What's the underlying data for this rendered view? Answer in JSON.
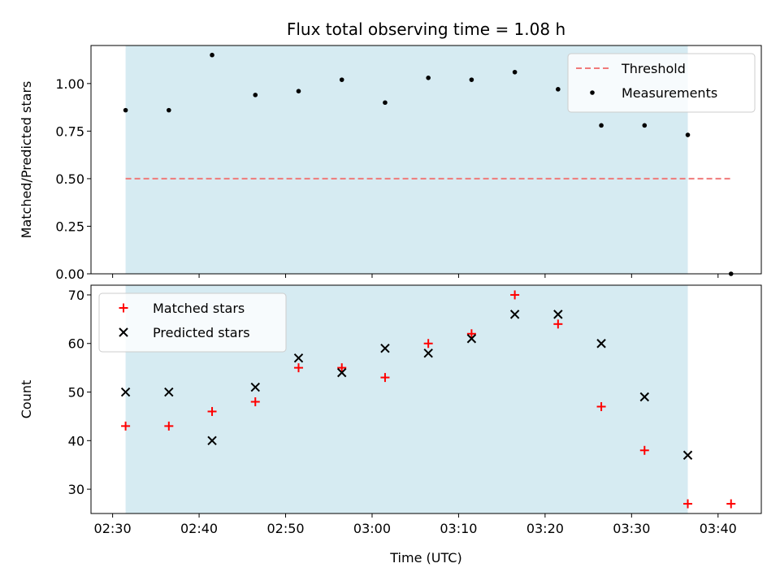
{
  "chart_data": [
    {
      "type": "scatter",
      "title": "Flux total observing time = 1.08 h",
      "xlabel": "",
      "ylabel": "Matched/Predicted stars",
      "xlim": [
        "02:27:30",
        "03:45:00"
      ],
      "ylim": [
        0,
        1.2
      ],
      "y_ticks": [
        0.0,
        0.25,
        0.5,
        0.75,
        1.0
      ],
      "y_tick_labels": [
        "0.00",
        "0.25",
        "0.50",
        "0.75",
        "1.00"
      ],
      "x_ticks": [
        "02:30",
        "02:40",
        "02:50",
        "03:00",
        "03:10",
        "03:20",
        "03:30",
        "03:40"
      ],
      "x_tick_labels_visible": false,
      "shaded_span": [
        "02:31:30",
        "03:36:30"
      ],
      "legend_position": "top-right",
      "series": [
        {
          "name": "Threshold",
          "style": "dashed-line",
          "color": "#f07a7a",
          "x": [
            "02:31:30",
            "03:41:30"
          ],
          "values": [
            0.5,
            0.5
          ]
        },
        {
          "name": "Measurements",
          "style": "dot",
          "color": "#000000",
          "x": [
            "02:31:30",
            "02:36:30",
            "02:41:30",
            "02:46:30",
            "02:51:30",
            "02:56:30",
            "03:01:30",
            "03:06:30",
            "03:11:30",
            "03:16:30",
            "03:21:30",
            "03:26:30",
            "03:31:30",
            "03:36:30",
            "03:41:30"
          ],
          "values": [
            0.86,
            0.86,
            1.15,
            0.94,
            0.96,
            1.02,
            0.9,
            1.03,
            1.02,
            1.06,
            0.97,
            0.78,
            0.78,
            0.73,
            0.0
          ]
        }
      ]
    },
    {
      "type": "scatter",
      "title": "",
      "xlabel": "Time (UTC)",
      "ylabel": "Count",
      "xlim": [
        "02:27:30",
        "03:45:00"
      ],
      "ylim": [
        25,
        72
      ],
      "y_ticks": [
        30,
        40,
        50,
        60,
        70
      ],
      "y_tick_labels": [
        "30",
        "40",
        "50",
        "60",
        "70"
      ],
      "x_ticks": [
        "02:30",
        "02:40",
        "02:50",
        "03:00",
        "03:10",
        "03:20",
        "03:30",
        "03:40"
      ],
      "x_tick_labels": [
        "02:30",
        "02:40",
        "02:50",
        "03:00",
        "03:10",
        "03:20",
        "03:30",
        "03:40"
      ],
      "shaded_span": [
        "02:31:30",
        "03:36:30"
      ],
      "legend_position": "top-left",
      "series": [
        {
          "name": "Matched stars",
          "style": "plus",
          "color": "#ff0000",
          "x": [
            "02:31:30",
            "02:36:30",
            "02:41:30",
            "02:46:30",
            "02:51:30",
            "02:56:30",
            "03:01:30",
            "03:06:30",
            "03:11:30",
            "03:16:30",
            "03:21:30",
            "03:26:30",
            "03:31:30",
            "03:36:30",
            "03:41:30"
          ],
          "values": [
            43,
            43,
            46,
            48,
            55,
            55,
            53,
            60,
            62,
            70,
            64,
            47,
            38,
            27,
            27
          ]
        },
        {
          "name": "Predicted stars",
          "style": "x",
          "color": "#000000",
          "x": [
            "02:31:30",
            "02:36:30",
            "02:41:30",
            "02:46:30",
            "02:51:30",
            "02:56:30",
            "03:01:30",
            "03:06:30",
            "03:11:30",
            "03:16:30",
            "03:21:30",
            "03:26:30",
            "03:31:30",
            "03:36:30"
          ],
          "values": [
            50,
            50,
            40,
            51,
            57,
            54,
            59,
            58,
            61,
            66,
            66,
            60,
            49,
            37
          ]
        }
      ]
    }
  ],
  "colors": {
    "shade": "#add8e6",
    "threshold": "#f07a7a",
    "matched": "#ff0000",
    "predicted": "#000000",
    "measurement": "#000000"
  }
}
